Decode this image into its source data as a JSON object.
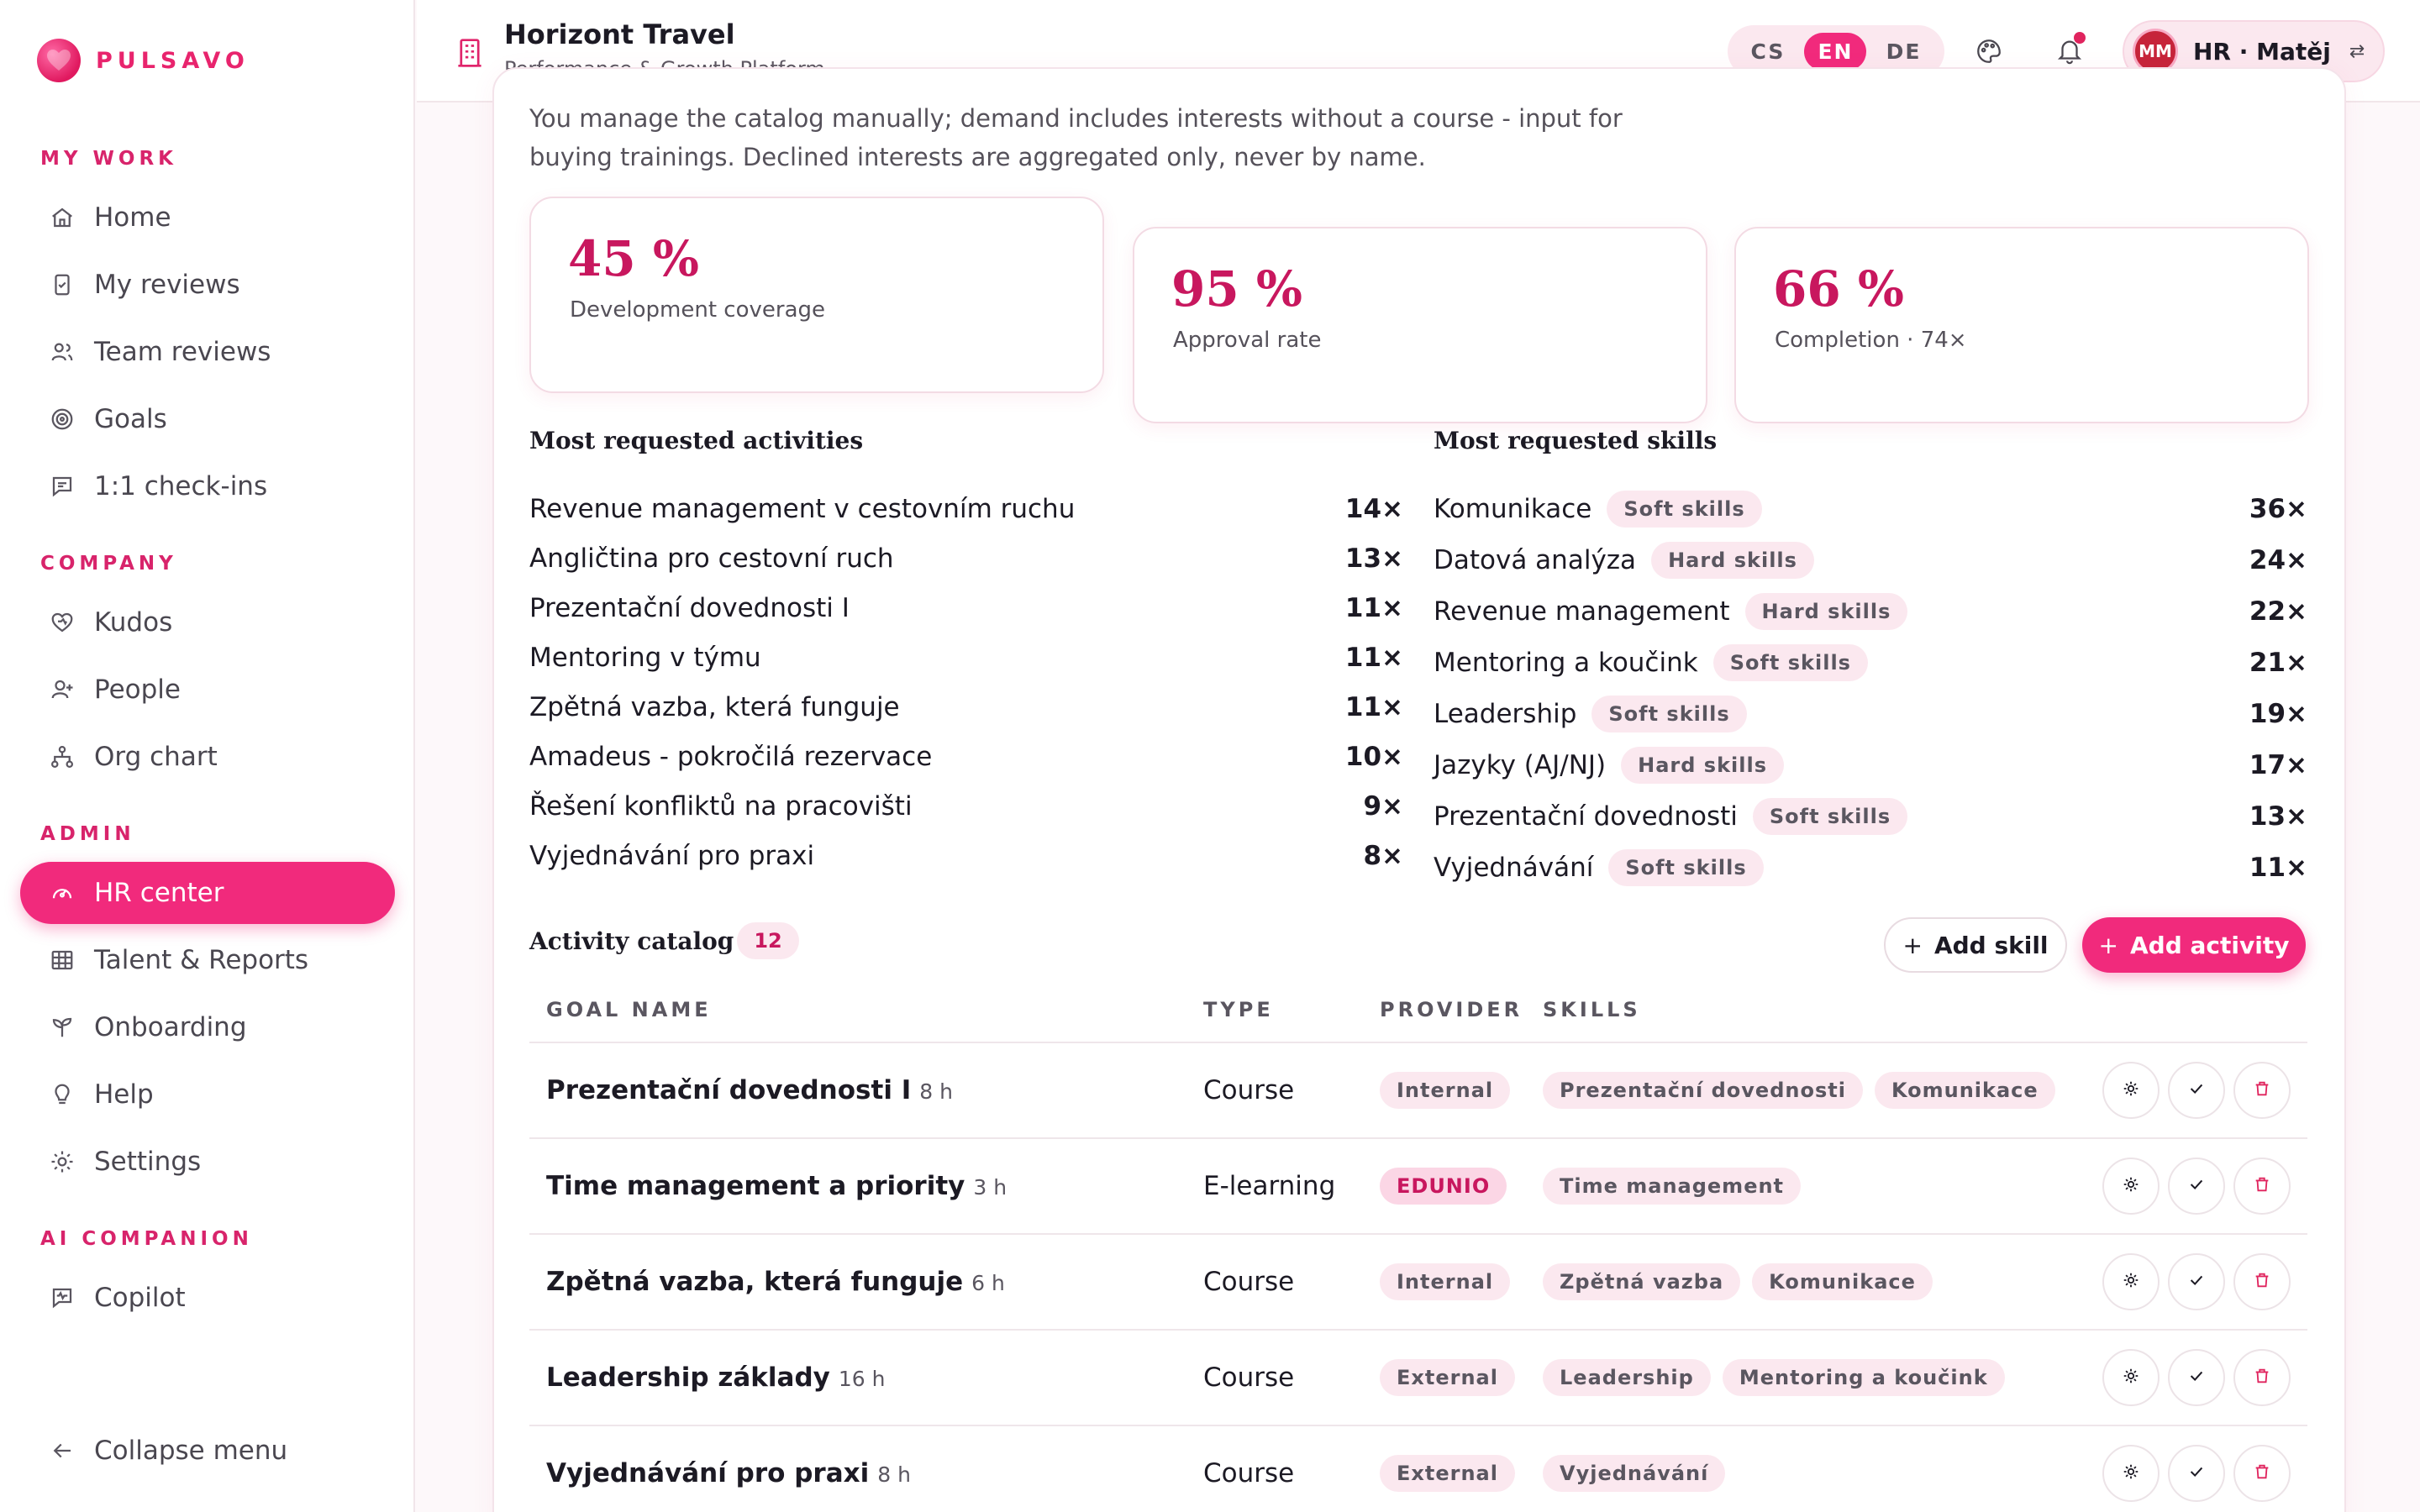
{
  "brand": {
    "name": "PULSAVO"
  },
  "sidebar": {
    "sections": [
      {
        "label": "MY WORK"
      },
      {
        "label": "COMPANY"
      },
      {
        "label": "ADMIN"
      },
      {
        "label": "AI COMPANION"
      }
    ],
    "items": [
      {
        "label": "Home",
        "icon": "home-icon"
      },
      {
        "label": "My reviews",
        "icon": "review-doc-icon"
      },
      {
        "label": "Team reviews",
        "icon": "team-icon"
      },
      {
        "label": "Goals",
        "icon": "target-icon"
      },
      {
        "label": "1:1 check-ins",
        "icon": "chat-icon"
      },
      {
        "label": "Kudos",
        "icon": "heart-hand-icon"
      },
      {
        "label": "People",
        "icon": "user-plus-icon"
      },
      {
        "label": "Org chart",
        "icon": "org-chart-icon"
      },
      {
        "label": "HR center",
        "icon": "gauge-icon",
        "active": true
      },
      {
        "label": "Talent & Reports",
        "icon": "grid-icon"
      },
      {
        "label": "Onboarding",
        "icon": "sprout-icon"
      },
      {
        "label": "Help",
        "icon": "lightbulb-icon"
      },
      {
        "label": "Settings",
        "icon": "gear-icon"
      },
      {
        "label": "Copilot",
        "icon": "copilot-icon"
      }
    ],
    "collapse_label": "Collapse menu"
  },
  "header": {
    "org_title": "Horizont Travel",
    "org_subtitle": "Performance & Growth Platform",
    "languages": [
      "CS",
      "EN",
      "DE"
    ],
    "active_language": "EN",
    "user_initials": "MM",
    "user_label": "HR · Matěj"
  },
  "intro": "You manage the catalog manually; demand includes interests without a course - input for buying trainings. Declined interests are aggregated only, never by name.",
  "stats": [
    {
      "value": "45 %",
      "label": "Development coverage"
    },
    {
      "value": "95 %",
      "label": "Approval rate"
    },
    {
      "value": "66 %",
      "label": "Completion · 74×"
    }
  ],
  "activities": {
    "title": "Most requested activities",
    "rows": [
      {
        "name": "Revenue management v cestovním ruchu",
        "count": "14×"
      },
      {
        "name": "Angličtina pro cestovní ruch",
        "count": "13×"
      },
      {
        "name": "Prezentační dovednosti I",
        "count": "11×"
      },
      {
        "name": "Mentoring v týmu",
        "count": "11×"
      },
      {
        "name": "Zpětná vazba, která funguje",
        "count": "11×"
      },
      {
        "name": "Amadeus - pokročilá rezervace",
        "count": "10×"
      },
      {
        "name": "Řešení konfliktů na pracovišti",
        "count": "9×"
      },
      {
        "name": "Vyjednávání pro praxi",
        "count": "8×"
      }
    ]
  },
  "skills": {
    "title": "Most requested skills",
    "rows": [
      {
        "name": "Komunikace",
        "tag": "Soft skills",
        "count": "36×"
      },
      {
        "name": "Datová analýza",
        "tag": "Hard skills",
        "count": "24×"
      },
      {
        "name": "Revenue management",
        "tag": "Hard skills",
        "count": "22×"
      },
      {
        "name": "Mentoring a koučink",
        "tag": "Soft skills",
        "count": "21×"
      },
      {
        "name": "Leadership",
        "tag": "Soft skills",
        "count": "19×"
      },
      {
        "name": "Jazyky (AJ/NJ)",
        "tag": "Hard skills",
        "count": "17×"
      },
      {
        "name": "Prezentační dovednosti",
        "tag": "Soft skills",
        "count": "13×"
      },
      {
        "name": "Vyjednávání",
        "tag": "Soft skills",
        "count": "11×"
      }
    ]
  },
  "catalog": {
    "title": "Activity catalog",
    "count": "12",
    "add_skill_label": "Add skill",
    "add_activity_label": "Add activity",
    "columns": [
      "GOAL NAME",
      "TYPE",
      "PROVIDER",
      "SKILLS"
    ],
    "rows": [
      {
        "name": "Prezentační dovednosti I",
        "hours": "8 h",
        "type": "Course",
        "provider": "Internal",
        "provider_highlight": false,
        "skills": [
          "Prezentační dovednosti",
          "Komunikace"
        ]
      },
      {
        "name": "Time management a priority",
        "hours": "3 h",
        "type": "E-learning",
        "provider": "EDUNIO",
        "provider_highlight": true,
        "skills": [
          "Time management"
        ]
      },
      {
        "name": "Zpětná vazba, která funguje",
        "hours": "6 h",
        "type": "Course",
        "provider": "Internal",
        "provider_highlight": false,
        "skills": [
          "Zpětná vazba",
          "Komunikace"
        ]
      },
      {
        "name": "Leadership základy",
        "hours": "16 h",
        "type": "Course",
        "provider": "External",
        "provider_highlight": false,
        "skills": [
          "Leadership",
          "Mentoring a koučink"
        ]
      },
      {
        "name": "Vyjednávání pro praxi",
        "hours": "8 h",
        "type": "Course",
        "provider": "External",
        "provider_highlight": false,
        "skills": [
          "Vyjednávání"
        ]
      }
    ]
  },
  "colors": {
    "accent": "#f12a7c",
    "accent_dark": "#c8175e",
    "tag_bg": "#fbe8ef"
  }
}
